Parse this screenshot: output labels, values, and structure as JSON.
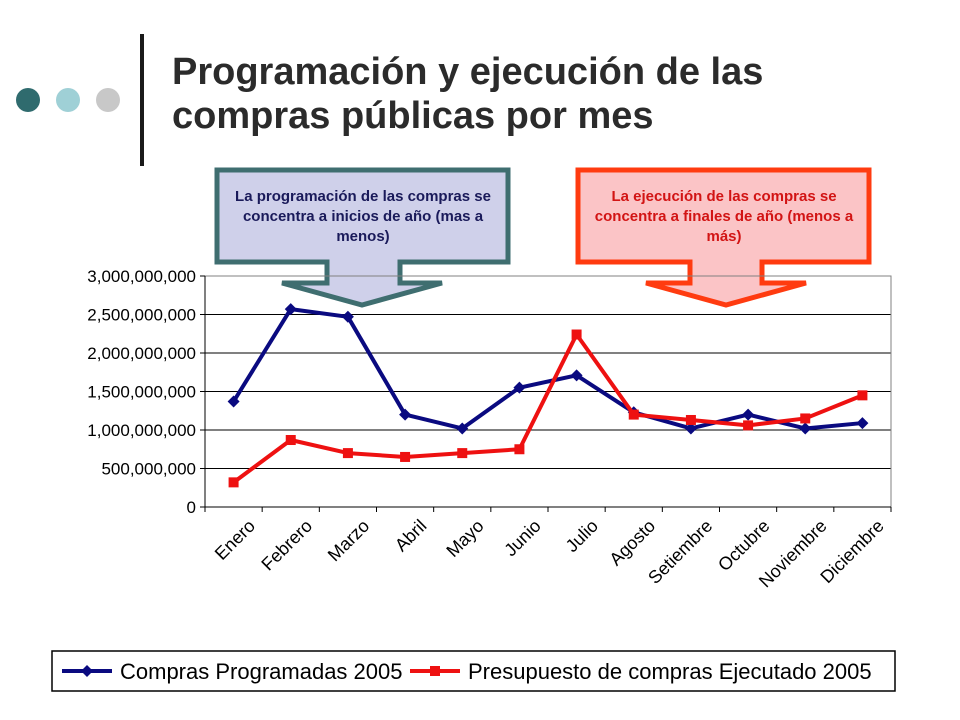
{
  "slide": {
    "title_line1": "Programación y ejecución de las",
    "title_line2": "compras públicas por mes",
    "decor_dot_colors": [
      "#2f6b6e",
      "#9fd0d6",
      "#c8c8c8"
    ]
  },
  "callouts": [
    {
      "text": "La programación de las compras se concentra a inicios de año (mas a menos)",
      "fill": "#cfd0ea",
      "border": "#3f6e70",
      "text_color": "#1a1a5a"
    },
    {
      "text": "La ejecución de las compras se concentra a finales de año (menos a más)",
      "fill": "#fbc4c6",
      "border": "#ff3b10",
      "text_color": "#d21414"
    }
  ],
  "chart_data": {
    "type": "line",
    "categories": [
      "Enero",
      "Febrero",
      "Marzo",
      "Abril",
      "Mayo",
      "Junio",
      "Julio",
      "Agosto",
      "Setiembre",
      "Octubre",
      "Noviembre",
      "Diciembre"
    ],
    "ylim": [
      0,
      3000000000
    ],
    "yticks": [
      0,
      500000000,
      1000000000,
      1500000000,
      2000000000,
      2500000000,
      3000000000
    ],
    "ytick_labels": [
      "0",
      "500,000,000",
      "1,000,000,000",
      "1,500,000,000",
      "2,000,000,000",
      "2,500,000,000",
      "3,000,000,000"
    ],
    "grid": true,
    "legend_position": "bottom",
    "series": [
      {
        "name": "Compras Programadas 2005",
        "color": "#0a0a80",
        "marker": "diamond",
        "values": [
          1370000000,
          2570000000,
          2470000000,
          1200000000,
          1020000000,
          1550000000,
          1710000000,
          1230000000,
          1020000000,
          1200000000,
          1020000000,
          1090000000
        ]
      },
      {
        "name": "Presupuesto de compras Ejecutado 2005",
        "color": "#ee1111",
        "marker": "square",
        "values": [
          320000000,
          870000000,
          700000000,
          650000000,
          700000000,
          750000000,
          2240000000,
          1200000000,
          1130000000,
          1060000000,
          1150000000,
          1450000000
        ]
      }
    ]
  }
}
